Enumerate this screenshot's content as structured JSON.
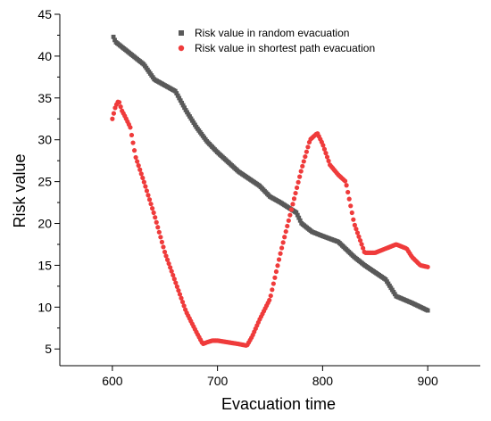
{
  "chart_data": {
    "type": "scatter",
    "xlabel": "Evacuation time",
    "ylabel": "Risk value",
    "xlim": [
      550,
      950
    ],
    "ylim": [
      3,
      45
    ],
    "x_ticks": [
      600,
      700,
      800,
      900
    ],
    "x_tick_labels": [
      "600",
      "700",
      "800",
      "900"
    ],
    "y_ticks": [
      5,
      10,
      15,
      20,
      25,
      30,
      35,
      40,
      45
    ],
    "y_tick_labels": [
      "5",
      "10",
      "15",
      "20",
      "25",
      "30",
      "35",
      "40",
      "45"
    ],
    "grid": false,
    "legend_position": "top-right",
    "series": [
      {
        "name": "Risk value in random evacuation",
        "marker": "square",
        "color": "#595959",
        "keypoints": [
          [
            601,
            42.3
          ],
          [
            603,
            41.7
          ],
          [
            610,
            41.0
          ],
          [
            620,
            40.0
          ],
          [
            630,
            39.0
          ],
          [
            640,
            37.2
          ],
          [
            650,
            36.5
          ],
          [
            660,
            35.8
          ],
          [
            670,
            33.5
          ],
          [
            680,
            31.5
          ],
          [
            690,
            29.8
          ],
          [
            700,
            28.5
          ],
          [
            720,
            26.2
          ],
          [
            740,
            24.5
          ],
          [
            750,
            23.2
          ],
          [
            760,
            22.5
          ],
          [
            775,
            21.3
          ],
          [
            780,
            20.0
          ],
          [
            790,
            19.0
          ],
          [
            800,
            18.5
          ],
          [
            815,
            17.8
          ],
          [
            830,
            16.0
          ],
          [
            840,
            15.0
          ],
          [
            860,
            13.3
          ],
          [
            870,
            11.3
          ],
          [
            885,
            10.5
          ],
          [
            900,
            9.6
          ]
        ],
        "n_points": 240
      },
      {
        "name": "Risk value in  shortest path evacuation",
        "marker": "circle",
        "color": "#ef3b3b",
        "keypoints": [
          [
            600,
            32.5
          ],
          [
            603,
            34.0
          ],
          [
            606,
            34.7
          ],
          [
            609,
            33.5
          ],
          [
            612,
            32.8
          ],
          [
            617,
            31.5
          ],
          [
            622,
            28.0
          ],
          [
            630,
            25.0
          ],
          [
            640,
            21.0
          ],
          [
            650,
            16.5
          ],
          [
            660,
            13.0
          ],
          [
            670,
            9.5
          ],
          [
            680,
            7.0
          ],
          [
            686,
            5.6
          ],
          [
            690,
            5.8
          ],
          [
            695,
            6.0
          ],
          [
            700,
            6.0
          ],
          [
            710,
            5.8
          ],
          [
            720,
            5.6
          ],
          [
            728,
            5.4
          ],
          [
            733,
            6.5
          ],
          [
            740,
            8.5
          ],
          [
            750,
            11.0
          ],
          [
            760,
            16.5
          ],
          [
            770,
            21.5
          ],
          [
            780,
            26.5
          ],
          [
            788,
            30.0
          ],
          [
            795,
            30.8
          ],
          [
            800,
            29.5
          ],
          [
            807,
            27.0
          ],
          [
            815,
            25.8
          ],
          [
            822,
            25.0
          ],
          [
            830,
            20.0
          ],
          [
            840,
            16.5
          ],
          [
            850,
            16.5
          ],
          [
            860,
            17.0
          ],
          [
            870,
            17.5
          ],
          [
            880,
            17.0
          ],
          [
            885,
            16.0
          ],
          [
            893,
            15.0
          ],
          [
            900,
            14.8
          ]
        ],
        "n_points": 230
      }
    ]
  }
}
